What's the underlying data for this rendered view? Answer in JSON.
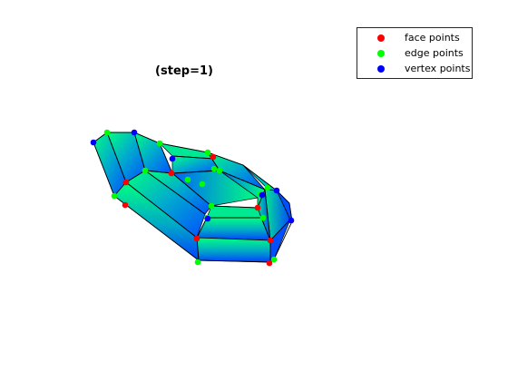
{
  "title": "(step=1)",
  "legend": {
    "entries": [
      {
        "label": "face points",
        "color": "#ff0000"
      },
      {
        "label": "edge points",
        "color": "#00ff00"
      },
      {
        "label": "vertex points",
        "color": "#0000ff"
      }
    ]
  },
  "colors": {
    "surface_light": "#00ff80",
    "surface_mid": "#00b0c8",
    "surface_dark": "#0044ff",
    "edge_line": "#000000"
  }
}
